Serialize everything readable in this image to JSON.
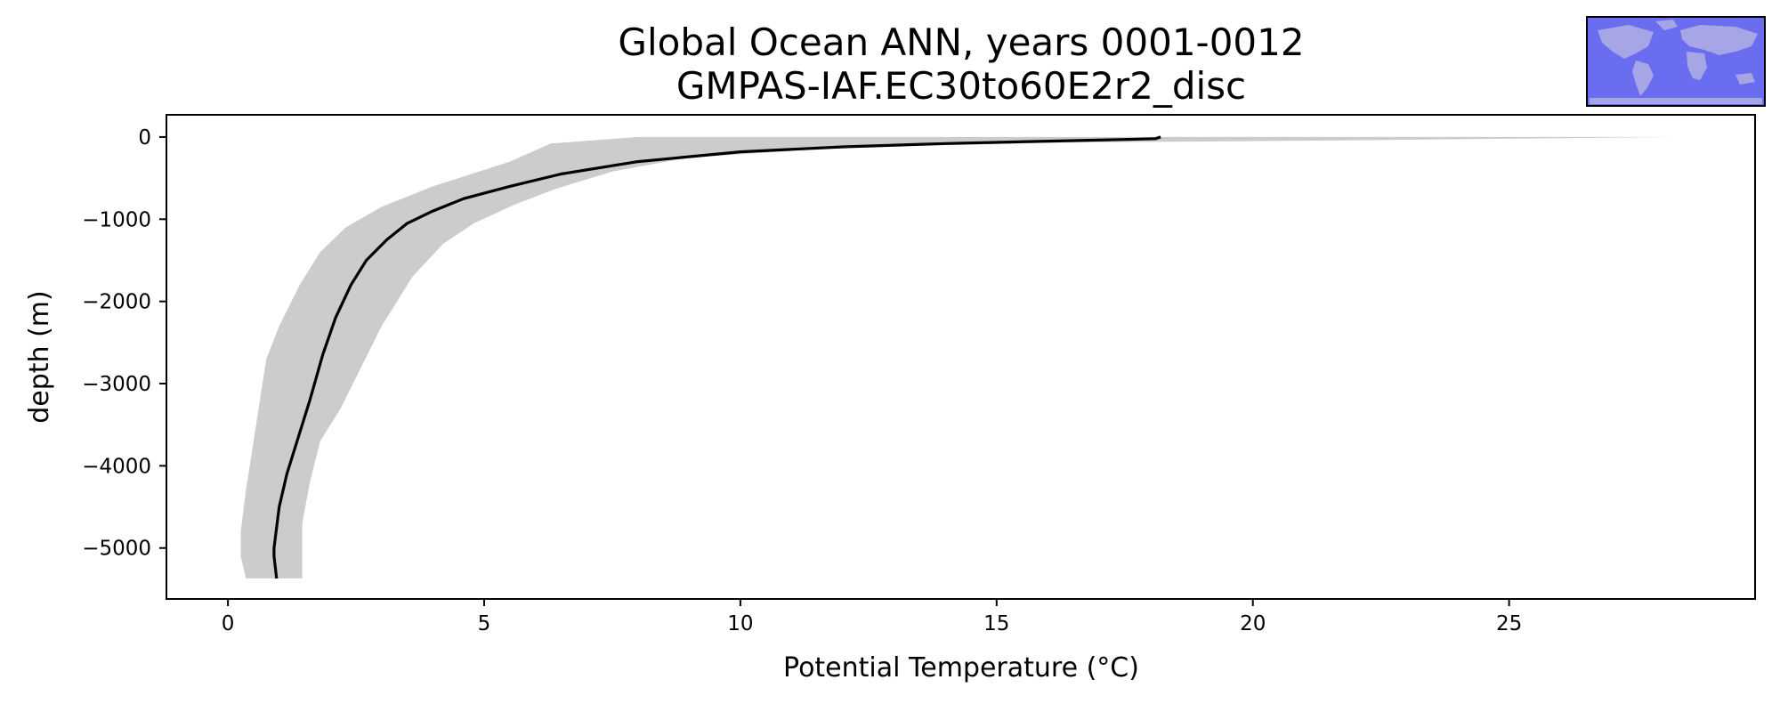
{
  "chart_data": {
    "type": "line",
    "title": "Global Ocean ANN, years 0001-0012",
    "subtitle": "GMPAS-IAF.EC30to60E2r2_disc",
    "xlabel": "Potential Temperature (°C)",
    "ylabel": "depth (m)",
    "xlim": [
      -1.2,
      29.8
    ],
    "ylim": [
      -5620,
      270
    ],
    "xticks": [
      0,
      5,
      10,
      15,
      20,
      25
    ],
    "yticks": [
      0,
      -1000,
      -2000,
      -3000,
      -4000,
      -5000
    ],
    "xtick_labels": [
      "0",
      "5",
      "10",
      "15",
      "20",
      "25"
    ],
    "ytick_labels": [
      "0",
      "−1000",
      "−2000",
      "−3000",
      "−4000",
      "−5000"
    ],
    "grid": false,
    "series": [
      {
        "style": "line",
        "color": "#000000",
        "points": [
          [
            18.2,
            0
          ],
          [
            18.1,
            -20
          ],
          [
            17.5,
            -30
          ],
          [
            16.0,
            -50
          ],
          [
            14.0,
            -80
          ],
          [
            12.0,
            -120
          ],
          [
            10.0,
            -180
          ],
          [
            8.0,
            -300
          ],
          [
            6.5,
            -450
          ],
          [
            5.5,
            -600
          ],
          [
            4.6,
            -750
          ],
          [
            4.0,
            -900
          ],
          [
            3.5,
            -1050
          ],
          [
            3.1,
            -1250
          ],
          [
            2.7,
            -1500
          ],
          [
            2.4,
            -1800
          ],
          [
            2.1,
            -2200
          ],
          [
            1.85,
            -2650
          ],
          [
            1.6,
            -3200
          ],
          [
            1.35,
            -3700
          ],
          [
            1.15,
            -4100
          ],
          [
            1.0,
            -4500
          ],
          [
            0.9,
            -5000
          ],
          [
            0.9,
            -5100
          ],
          [
            0.95,
            -5370
          ]
        ]
      },
      {
        "style": "band",
        "color": "#cccccc",
        "upper": [
          [
            28.3,
            0
          ],
          [
            22.0,
            -40
          ],
          [
            16.0,
            -70
          ],
          [
            12.0,
            -130
          ],
          [
            9.0,
            -250
          ],
          [
            7.5,
            -420
          ],
          [
            6.4,
            -630
          ],
          [
            5.6,
            -820
          ],
          [
            4.8,
            -1050
          ],
          [
            4.2,
            -1300
          ],
          [
            3.6,
            -1700
          ],
          [
            3.3,
            -2000
          ],
          [
            3.0,
            -2300
          ],
          [
            2.6,
            -2800
          ],
          [
            2.2,
            -3300
          ],
          [
            1.8,
            -3700
          ],
          [
            1.6,
            -4200
          ],
          [
            1.45,
            -4700
          ],
          [
            1.45,
            -5370
          ]
        ],
        "lower": [
          [
            8.0,
            0
          ],
          [
            6.3,
            -80
          ],
          [
            5.5,
            -300
          ],
          [
            4.0,
            -600
          ],
          [
            3.0,
            -850
          ],
          [
            2.3,
            -1100
          ],
          [
            1.8,
            -1400
          ],
          [
            1.4,
            -1800
          ],
          [
            1.0,
            -2300
          ],
          [
            0.75,
            -2700
          ],
          [
            0.65,
            -3100
          ],
          [
            0.5,
            -3700
          ],
          [
            0.35,
            -4300
          ],
          [
            0.25,
            -4800
          ],
          [
            0.25,
            -5100
          ],
          [
            0.35,
            -5370
          ]
        ]
      }
    ]
  },
  "inset_map": {
    "icon": "world-map-icon",
    "ocean_color": "#6b6df0",
    "land_color": "#a6a6e6"
  }
}
